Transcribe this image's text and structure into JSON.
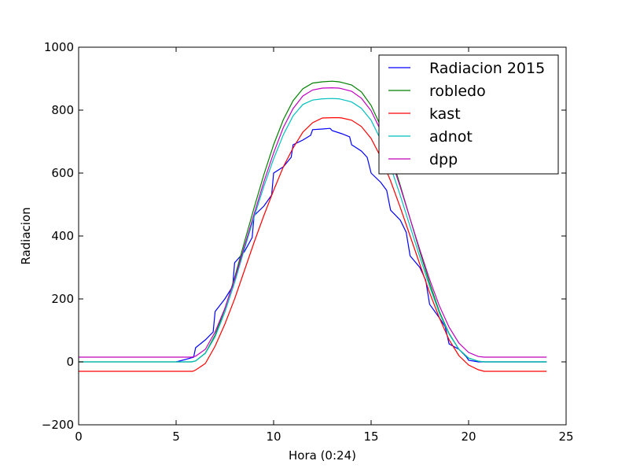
{
  "chart_data": {
    "type": "line",
    "title": "",
    "xlabel": "Hora (0:24)",
    "ylabel": "Radiacion",
    "xlim": [
      0,
      25
    ],
    "ylim": [
      -200,
      1000
    ],
    "xticks": [
      0,
      5,
      10,
      15,
      20,
      25
    ],
    "yticks": [
      -200,
      0,
      200,
      400,
      600,
      800,
      1000
    ],
    "grid": false,
    "legend_position": "top-right",
    "series": [
      {
        "name": "Radiacion 2015",
        "color": "#0000ff",
        "x": [
          5,
          5.5,
          5.9,
          6,
          6.5,
          6.9,
          7,
          7.5,
          7.9,
          8,
          8.5,
          8.9,
          9,
          9.5,
          9.9,
          10,
          10.5,
          10.9,
          11,
          11.5,
          11.9,
          12,
          12.5,
          12.9,
          13,
          13.5,
          13.9,
          14,
          14.5,
          14.8,
          15,
          15.5,
          15.8,
          16,
          16.5,
          16.8,
          17,
          17.5,
          17.8,
          18,
          18.5,
          18.8,
          19,
          19.5,
          19.9,
          20,
          20.5,
          24
        ],
        "y": [
          0,
          8,
          15,
          45,
          70,
          95,
          160,
          200,
          240,
          315,
          350,
          395,
          465,
          495,
          530,
          600,
          620,
          650,
          690,
          705,
          720,
          738,
          740,
          742,
          735,
          725,
          715,
          690,
          670,
          650,
          600,
          570,
          545,
          482,
          450,
          412,
          337,
          300,
          260,
          183,
          140,
          112,
          57,
          40,
          15,
          5,
          0,
          0
        ]
      },
      {
        "name": "robledo",
        "color": "#008000",
        "x": [
          0,
          5.8,
          6,
          6.5,
          7,
          7.5,
          8,
          8.5,
          9,
          9.5,
          10,
          10.5,
          11,
          11.5,
          12,
          12.5,
          13,
          13.35,
          13.5,
          14,
          14.5,
          15,
          15.5,
          16,
          16.5,
          17,
          17.5,
          18,
          18.5,
          19,
          19.5,
          20,
          20.5,
          20.8,
          24
        ],
        "y": [
          0,
          0,
          3,
          28,
          85,
          168,
          268,
          380,
          490,
          595,
          690,
          770,
          830,
          868,
          886,
          890,
          892,
          890,
          888,
          880,
          858,
          815,
          748,
          660,
          560,
          455,
          350,
          250,
          160,
          90,
          40,
          12,
          2,
          0,
          0
        ]
      },
      {
        "name": "kast",
        "color": "#ff0000",
        "x": [
          0,
          5.85,
          6,
          6.5,
          7,
          7.5,
          8,
          8.5,
          9,
          9.5,
          10,
          10.5,
          11,
          11.5,
          12,
          12.5,
          13,
          13.35,
          13.5,
          14,
          14.5,
          15,
          15.5,
          16,
          16.5,
          17,
          17.5,
          18,
          18.5,
          19,
          19.5,
          20,
          20.5,
          20.8,
          24
        ],
        "y": [
          -30,
          -30,
          -26,
          -5,
          50,
          120,
          200,
          290,
          380,
          465,
          545,
          620,
          680,
          730,
          760,
          775,
          776,
          776,
          775,
          768,
          748,
          710,
          650,
          575,
          490,
          400,
          310,
          220,
          140,
          70,
          20,
          -10,
          -25,
          -30,
          -30
        ]
      },
      {
        "name": "adnot",
        "color": "#00bfbf",
        "x": [
          0,
          5.8,
          6,
          6.5,
          7,
          7.5,
          8,
          8.5,
          9,
          9.5,
          10,
          10.5,
          11,
          11.5,
          12,
          12.5,
          13,
          13.35,
          13.5,
          14,
          14.5,
          15,
          15.5,
          16,
          16.5,
          17,
          17.5,
          18,
          18.5,
          19,
          19.5,
          20,
          20.5,
          20.8,
          24
        ],
        "y": [
          0,
          0,
          3,
          27,
          80,
          158,
          252,
          358,
          460,
          558,
          645,
          722,
          782,
          818,
          832,
          836,
          837,
          836,
          834,
          826,
          806,
          768,
          705,
          620,
          528,
          430,
          333,
          240,
          155,
          88,
          40,
          12,
          2,
          0,
          0
        ]
      },
      {
        "name": "dpp",
        "color": "#bf00bf",
        "x": [
          0,
          5.8,
          6,
          6.5,
          7,
          7.5,
          8,
          8.5,
          9,
          9.5,
          10,
          10.5,
          11,
          11.5,
          12,
          12.5,
          13,
          13.35,
          13.5,
          14,
          14.5,
          15,
          15.5,
          16,
          16.5,
          17,
          17.5,
          18,
          18.5,
          19,
          19.5,
          20,
          20.5,
          20.8,
          24
        ],
        "y": [
          15,
          15,
          18,
          40,
          95,
          170,
          262,
          366,
          470,
          572,
          664,
          745,
          805,
          845,
          864,
          870,
          871,
          870,
          868,
          860,
          838,
          798,
          734,
          648,
          555,
          455,
          356,
          262,
          178,
          110,
          60,
          30,
          17,
          15,
          15
        ]
      }
    ]
  }
}
